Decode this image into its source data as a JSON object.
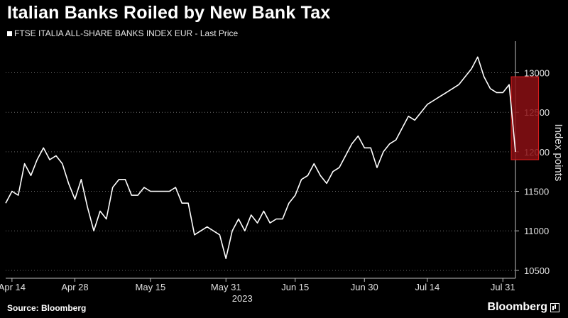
{
  "header": {
    "title": "Italian Banks Roiled by New Bank Tax",
    "legend_label": "FTSE ITALIA ALL-SHARE BANKS INDEX EUR - Last Price"
  },
  "footer": {
    "source": "Source: Bloomberg",
    "brand": "Bloomberg"
  },
  "colors": {
    "background": "#000000",
    "line": "#ffffff",
    "highlight_fill": "#8b0f14",
    "highlight_stroke": "#e02020"
  },
  "chart_data": {
    "type": "line",
    "title": "Italian Banks Roiled by New Bank Tax",
    "ylabel": "Index points",
    "xlabel": "2023",
    "ylim": [
      10400,
      13400
    ],
    "y_ticks": [
      10500,
      11000,
      11500,
      12000,
      12500,
      13000
    ],
    "x_ticks": [
      {
        "label": "Apr 14",
        "index": 1
      },
      {
        "label": "Apr 28",
        "index": 11
      },
      {
        "label": "May 15",
        "index": 23
      },
      {
        "label": "May 31",
        "index": 35
      },
      {
        "label": "Jun 15",
        "index": 46
      },
      {
        "label": "Jun 30",
        "index": 57
      },
      {
        "label": "Jul 14",
        "index": 67
      },
      {
        "label": "Jul 31",
        "index": 79
      }
    ],
    "year_label": "2023",
    "grid": "horizontal dotted",
    "legend": "top-left",
    "highlight": {
      "from_index": 81,
      "to_index": 84,
      "y_range": [
        11900,
        12950
      ]
    },
    "series": [
      {
        "name": "FTSE ITALIA ALL-SHARE BANKS INDEX EUR - Last Price",
        "values": [
          11350,
          11500,
          11450,
          11850,
          11700,
          11900,
          12050,
          11900,
          11950,
          11850,
          11600,
          11400,
          11650,
          11300,
          11000,
          11250,
          11150,
          11550,
          11650,
          11650,
          11450,
          11450,
          11550,
          11500,
          11500,
          11500,
          11500,
          11550,
          11350,
          11350,
          10950,
          11000,
          11050,
          11000,
          10950,
          10650,
          11000,
          11150,
          11000,
          11200,
          11100,
          11250,
          11100,
          11150,
          11150,
          11350,
          11450,
          11650,
          11700,
          11850,
          11700,
          11600,
          11750,
          11800,
          11950,
          12100,
          12200,
          12050,
          12050,
          11800,
          12000,
          12100,
          12150,
          12300,
          12450,
          12400,
          12500,
          12600,
          12650,
          12700,
          12750,
          12800,
          12850,
          12950,
          13050,
          13200,
          12950,
          12800,
          12750,
          12750,
          12850,
          12000
        ]
      }
    ]
  }
}
